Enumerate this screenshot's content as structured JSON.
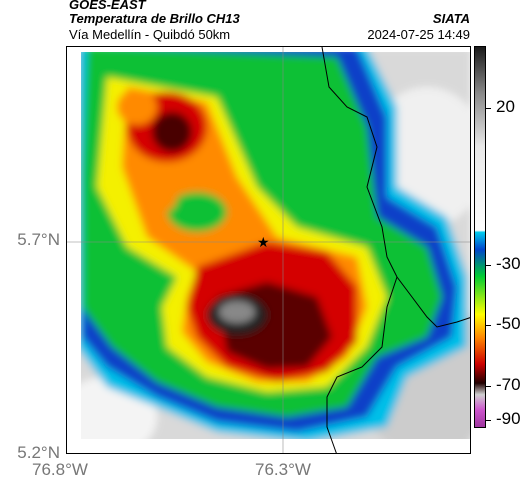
{
  "header": {
    "satellite": "GOES-EAST",
    "product": "Temperatura de Brillo CH13",
    "organization": "SIATA",
    "region": "Vía Medellín - Quibdó 50km",
    "timestamp": "2024-07-25 14:49"
  },
  "axes": {
    "y_ticks": [
      "5.7°N",
      "5.2°N"
    ],
    "x_ticks": [
      "76.8°W",
      "76.3°W"
    ]
  },
  "colorbar": {
    "ticks": [
      "20",
      "-30",
      "-50",
      "-70",
      "-90"
    ],
    "colors": [
      "#e8e8e8",
      "#888888",
      "#2a2a2a",
      "#00ccee",
      "#0044cc",
      "#00cc33",
      "#ffff00",
      "#ff8800",
      "#cc0000",
      "#200000",
      "#cc55cc"
    ]
  },
  "map": {
    "marker_icon": "star-icon",
    "grid_lines": true
  }
}
